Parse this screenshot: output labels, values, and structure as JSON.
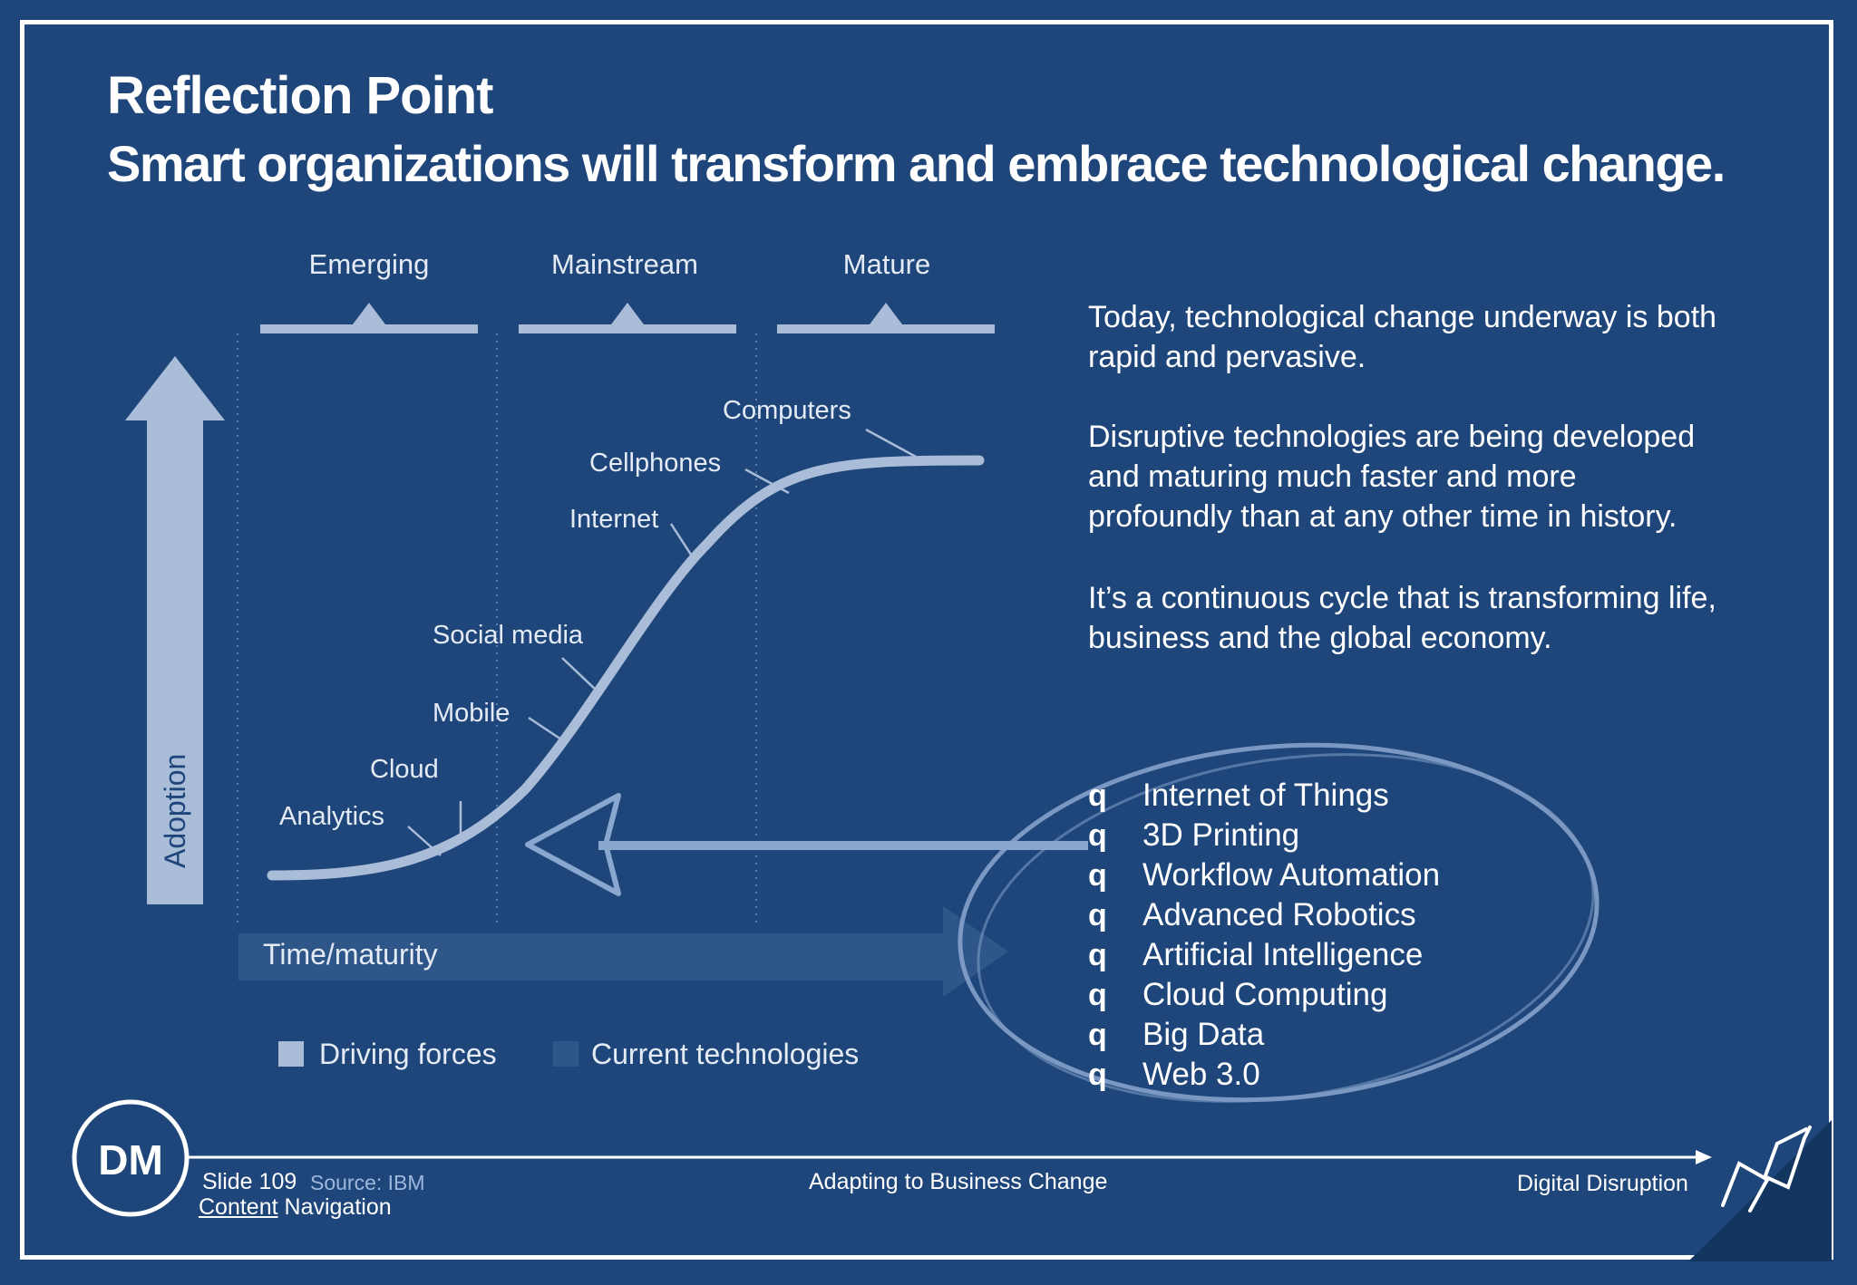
{
  "title": {
    "line1": "Reflection Point",
    "line2": "Smart organizations will transform and embrace technological change."
  },
  "diagram": {
    "phases": [
      "Emerging",
      "Mainstream",
      "Mature"
    ],
    "axis_y": "Adoption",
    "axis_x": "Time/maturity",
    "curve_labels": {
      "computers": "Computers",
      "cellphones": "Cellphones",
      "internet": "Internet",
      "social_media": "Social media",
      "mobile": "Mobile",
      "cloud": "Cloud",
      "analytics": "Analytics"
    },
    "legend": {
      "driving": "Driving forces",
      "current": "Current technologies"
    }
  },
  "paragraphs": {
    "p1": "Today, technological change underway is both rapid and pervasive.",
    "p2": "Disruptive technologies are being developed and maturing much faster and more profoundly than at any other time in history.",
    "p3": "It’s a continuous cycle that is transforming life, business and the global economy."
  },
  "bullets": {
    "marker": "q",
    "items": [
      "Internet of Things",
      "3D Printing",
      "Workflow Automation",
      "Advanced Robotics",
      "Artificial Intelligence",
      "Cloud Computing",
      "Big Data",
      "Web 3.0"
    ]
  },
  "footer": {
    "logo_text": "DM",
    "slide_number": "Slide 109",
    "source": "Source: IBM",
    "nav_link": "Content",
    "nav_rest": " Navigation",
    "center": "Adapting to Business Change",
    "right": "Digital Disruption"
  },
  "colors": {
    "background": "#1f467a",
    "diagram_light": "#a9bdd9",
    "diagram_band": "#2f5688"
  }
}
